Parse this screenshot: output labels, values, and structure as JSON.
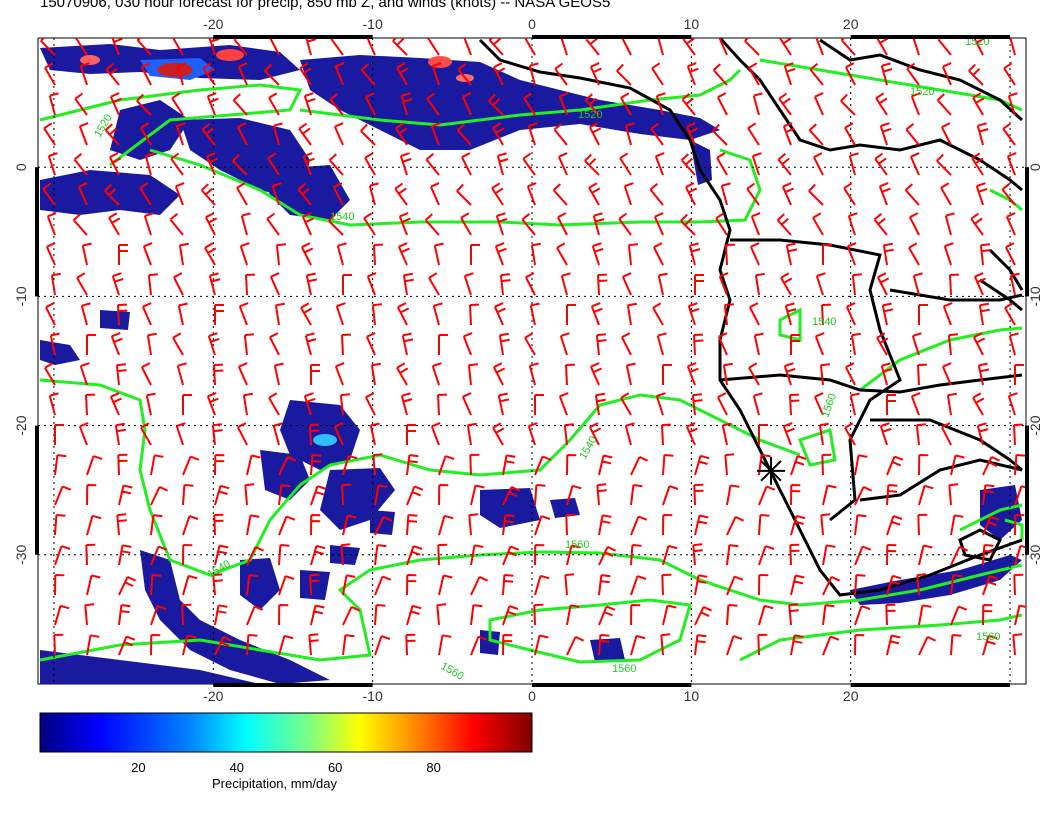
{
  "title": "15070906, 030 hour forecast for precip, 850 mb Z, and winds (knots) -- NASA GEOS5",
  "map": {
    "lon_range": [
      -31,
      31
    ],
    "lat_range": [
      -40,
      10
    ],
    "lon_ticks": [
      "-20",
      "-10",
      "0",
      "10",
      "20"
    ],
    "lon_tick_values": [
      -20,
      -10,
      0,
      10,
      20
    ],
    "lat_ticks": [
      "0",
      "-10",
      "-20",
      "-30"
    ],
    "lat_tick_values": [
      0,
      -10,
      -20,
      -30
    ],
    "contour_labels": [
      "1520",
      "1520",
      "1520",
      "1540",
      "1540",
      "1540",
      "1540",
      "1560",
      "1560",
      "1560",
      "1560",
      "1560",
      "1520"
    ],
    "marker": {
      "lon": 15,
      "lat": -23.5,
      "symbol": "asterisk"
    },
    "colors": {
      "wind_barbs": "#ff0000",
      "contours": "#22ee22",
      "coast": "#000000",
      "grid": "#000000"
    }
  },
  "colorbar": {
    "label": "Precipitation, mm/day",
    "ticks": [
      "20",
      "40",
      "60",
      "80"
    ],
    "tick_values": [
      20,
      40,
      60,
      80
    ],
    "range": [
      0,
      100
    ],
    "colors": [
      "#00007f",
      "#0000ff",
      "#0080ff",
      "#00ffff",
      "#80ff80",
      "#ffff00",
      "#ff8000",
      "#ff0000",
      "#7f0000"
    ]
  }
}
